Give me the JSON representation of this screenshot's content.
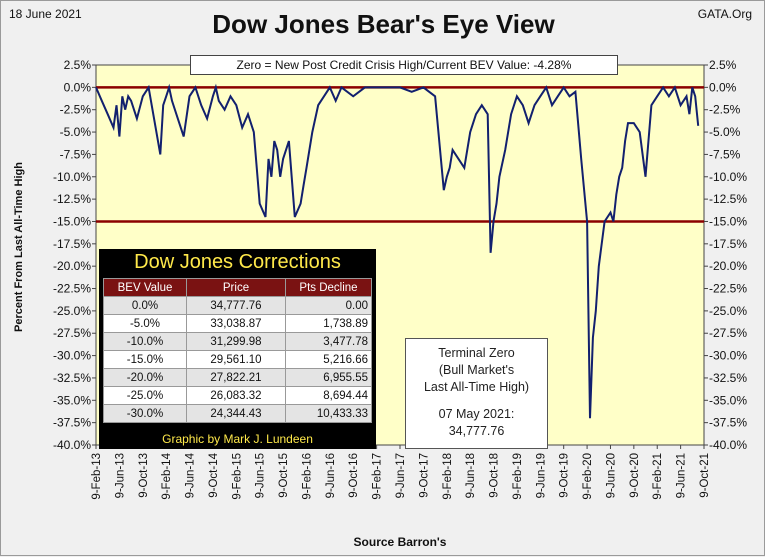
{
  "header": {
    "date": "18 June 2021",
    "title": "Dow Jones Bear's Eye View",
    "source_tag": "GATA.Org"
  },
  "bev_note": "Zero = New Post Credit Crisis High/Current  BEV Value:  -4.28%",
  "terminal_box": {
    "line1": "Terminal Zero",
    "line2": "(Bull Market's",
    "line3": "Last All-Time High)",
    "line4": "07 May 2021:",
    "line5": "34,777.76"
  },
  "corrections_table": {
    "title": "Dow Jones Corrections",
    "headers": [
      "BEV Value",
      "Price",
      "Pts Decline"
    ],
    "rows": [
      [
        "0.0%",
        "34,777.76",
        "0.00"
      ],
      [
        "-5.0%",
        "33,038.87",
        "1,738.89"
      ],
      [
        "-10.0%",
        "31,299.98",
        "3,477.78"
      ],
      [
        "-15.0%",
        "29,561.10",
        "5,216.66"
      ],
      [
        "-20.0%",
        "27,822.21",
        "6,955.55"
      ],
      [
        "-25.0%",
        "26,083.32",
        "8,694.44"
      ],
      [
        "-30.0%",
        "24,344.43",
        "10,433.33"
      ]
    ],
    "credit": "Graphic by Mark J. Lundeen"
  },
  "colors": {
    "plot_bg": "#ffffc8",
    "series": "#12206e",
    "ref_line": "#8b0000"
  },
  "chart_data": {
    "type": "line",
    "title": "Dow Jones Bear's Eye View",
    "xlabel": "Source Barron's",
    "ylabel": "Percent From Last All-Time High",
    "ylim": [
      -40,
      2.5
    ],
    "yticks": [
      "2.5%",
      "0.0%",
      "-2.5%",
      "-5.0%",
      "-7.5%",
      "-10.0%",
      "-12.5%",
      "-15.0%",
      "-17.5%",
      "-20.0%",
      "-22.5%",
      "-25.0%",
      "-27.5%",
      "-30.0%",
      "-32.5%",
      "-35.0%",
      "-37.5%",
      "-40.0%"
    ],
    "xticks": [
      "9-Feb-13",
      "9-Jun-13",
      "9-Oct-13",
      "9-Feb-14",
      "9-Jun-14",
      "9-Oct-14",
      "9-Feb-15",
      "9-Jun-15",
      "9-Oct-15",
      "9-Feb-16",
      "9-Jun-16",
      "9-Oct-16",
      "9-Feb-17",
      "9-Jun-17",
      "9-Oct-17",
      "9-Feb-18",
      "9-Jun-18",
      "9-Oct-18",
      "9-Feb-19",
      "9-Jun-19",
      "9-Oct-19",
      "9-Feb-20",
      "9-Jun-20",
      "9-Oct-20",
      "9-Feb-21",
      "9-Jun-21",
      "9-Oct-21"
    ],
    "reference_lines": [
      0,
      -15
    ],
    "grid": false,
    "series": [
      {
        "values_x_months": [
          0,
          1,
          2,
          3,
          3.5,
          4,
          4.5,
          5,
          5.5,
          6,
          7,
          8,
          9,
          11,
          11.5,
          12,
          12.5,
          13,
          14,
          15,
          16,
          17,
          18,
          19,
          20,
          20.5,
          21,
          22,
          23,
          24,
          25,
          26,
          27,
          28,
          29,
          29.5,
          30,
          30.5,
          31,
          31.5,
          32,
          33,
          34,
          35,
          35.5,
          36,
          37,
          38,
          39,
          40,
          41,
          42,
          44,
          46,
          48,
          50,
          52,
          54,
          56,
          58,
          59,
          59.5,
          60,
          60.5,
          61,
          62,
          63,
          64,
          65,
          66,
          67,
          67.5,
          68,
          68.5,
          69,
          70,
          71,
          72,
          73,
          74,
          75,
          76,
          77,
          78,
          79,
          80,
          81,
          82,
          83,
          84,
          84.5,
          85,
          85.5,
          86,
          87,
          88,
          88.5,
          89,
          89.5,
          90,
          90.5,
          91,
          92,
          93,
          94,
          95,
          96,
          97,
          98,
          99,
          100,
          101,
          101.5,
          102,
          102.5,
          103
        ],
        "values_y": [
          0,
          -1.5,
          -3,
          -4.5,
          -2,
          -5.5,
          -1,
          -2.5,
          -1,
          -1.5,
          -3.5,
          -1,
          0,
          -7.5,
          -2,
          -1,
          0,
          -1.5,
          -3.5,
          -5.5,
          -1,
          0,
          -2,
          -3.5,
          -1,
          0,
          -1.5,
          -2.5,
          -1,
          -2,
          -4.5,
          -3,
          -5,
          -13,
          -14.5,
          -8,
          -10,
          -6,
          -7,
          -10,
          -8,
          -6,
          -14.5,
          -13,
          -11,
          -9,
          -5,
          -2,
          -1,
          0,
          -1.5,
          0,
          -1,
          0,
          0,
          0,
          0,
          -0.5,
          0,
          -1,
          -8,
          -11.5,
          -10,
          -9,
          -7,
          -8,
          -9,
          -5,
          -3,
          -2,
          -3,
          -18.5,
          -15,
          -13,
          -10,
          -7,
          -3,
          -1,
          -2,
          -4,
          -2,
          -1,
          0,
          -2,
          -1,
          0,
          -1,
          -0.5,
          -8,
          -15,
          -37,
          -28,
          -25,
          -20,
          -15,
          -14,
          -15,
          -12,
          -10,
          -9,
          -6,
          -4,
          -4,
          -5,
          -10,
          -2,
          -1,
          0,
          -1,
          0,
          -2,
          -1,
          -3,
          0,
          -1,
          -4.3
        ]
      }
    ]
  }
}
